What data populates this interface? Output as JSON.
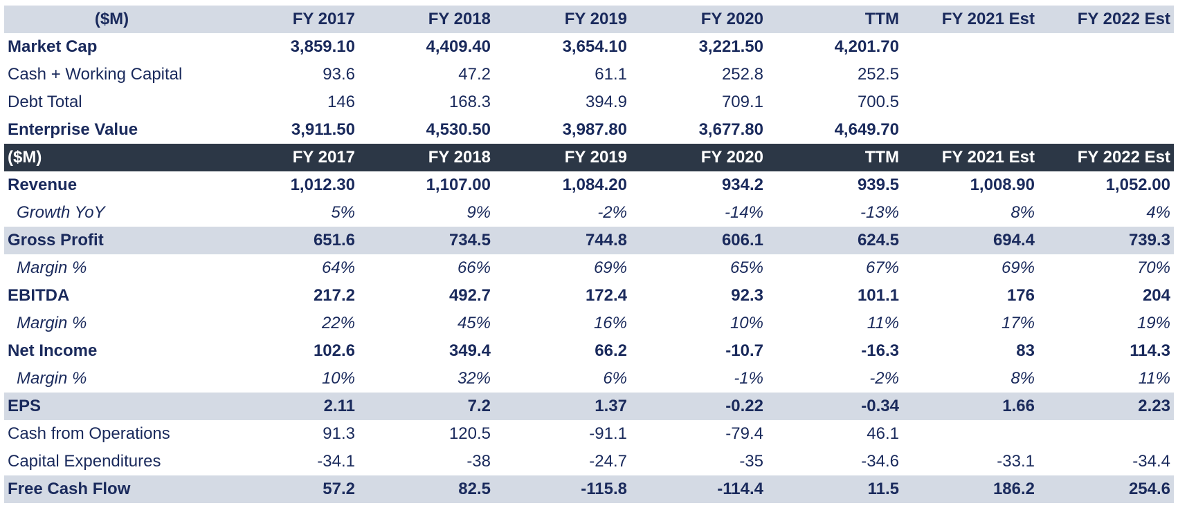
{
  "columns": [
    "FY 2017",
    "FY 2018",
    "FY 2019",
    "FY 2020",
    "TTM",
    "FY 2021 Est",
    "FY 2022 Est"
  ],
  "unit_label": "($M)",
  "valuation_rows": [
    {
      "label": "Market Cap",
      "style": "bold",
      "values": [
        "3,859.10",
        "4,409.40",
        "3,654.10",
        "3,221.50",
        "4,201.70",
        "",
        ""
      ]
    },
    {
      "label": "Cash + Working Capital",
      "style": "normal",
      "values": [
        "93.6",
        "47.2",
        "61.1",
        "252.8",
        "252.5",
        "",
        ""
      ]
    },
    {
      "label": "Debt Total",
      "style": "normal",
      "values": [
        "146",
        "168.3",
        "394.9",
        "709.1",
        "700.5",
        "",
        ""
      ]
    },
    {
      "label": "Enterprise Value",
      "style": "bold",
      "values": [
        "3,911.50",
        "4,530.50",
        "3,987.80",
        "3,677.80",
        "4,649.70",
        "",
        ""
      ]
    }
  ],
  "financial_rows": [
    {
      "label": "Revenue",
      "style": "bold",
      "values": [
        "1,012.30",
        "1,107.00",
        "1,084.20",
        "934.2",
        "939.5",
        "1,008.90",
        "1,052.00"
      ]
    },
    {
      "label": "Growth YoY",
      "style": "italic",
      "values": [
        "5%",
        "9%",
        "-2%",
        "-14%",
        "-13%",
        "8%",
        "4%"
      ]
    },
    {
      "label": "Gross Profit",
      "style": "bold shade",
      "values": [
        "651.6",
        "734.5",
        "744.8",
        "606.1",
        "624.5",
        "694.4",
        "739.3"
      ]
    },
    {
      "label": "Margin %",
      "style": "italic",
      "values": [
        "64%",
        "66%",
        "69%",
        "65%",
        "67%",
        "69%",
        "70%"
      ]
    },
    {
      "label": "EBITDA",
      "style": "bold",
      "values": [
        "217.2",
        "492.7",
        "172.4",
        "92.3",
        "101.1",
        "176",
        "204"
      ]
    },
    {
      "label": "Margin %",
      "style": "italic",
      "values": [
        "22%",
        "45%",
        "16%",
        "10%",
        "11%",
        "17%",
        "19%"
      ]
    },
    {
      "label": "Net Income",
      "style": "bold",
      "values": [
        "102.6",
        "349.4",
        "66.2",
        "-10.7",
        "-16.3",
        "83",
        "114.3"
      ]
    },
    {
      "label": "Margin %",
      "style": "italic",
      "values": [
        "10%",
        "32%",
        "6%",
        "-1%",
        "-2%",
        "8%",
        "11%"
      ]
    },
    {
      "label": "EPS",
      "style": "bold shade",
      "values": [
        "2.11",
        "7.2",
        "1.37",
        "-0.22",
        "-0.34",
        "1.66",
        "2.23"
      ]
    },
    {
      "label": "Cash from Operations",
      "style": "normal",
      "values": [
        "91.3",
        "120.5",
        "-91.1",
        "-79.4",
        "46.1",
        "",
        ""
      ]
    },
    {
      "label": "Capital Expenditures",
      "style": "normal",
      "values": [
        "-34.1",
        "-38",
        "-24.7",
        "-35",
        "-34.6",
        "-33.1",
        "-34.4"
      ]
    },
    {
      "label": "Free Cash Flow",
      "style": "bold shade",
      "values": [
        "57.2",
        "82.5",
        "-115.8",
        "-114.4",
        "11.5",
        "186.2",
        "254.6"
      ]
    }
  ]
}
